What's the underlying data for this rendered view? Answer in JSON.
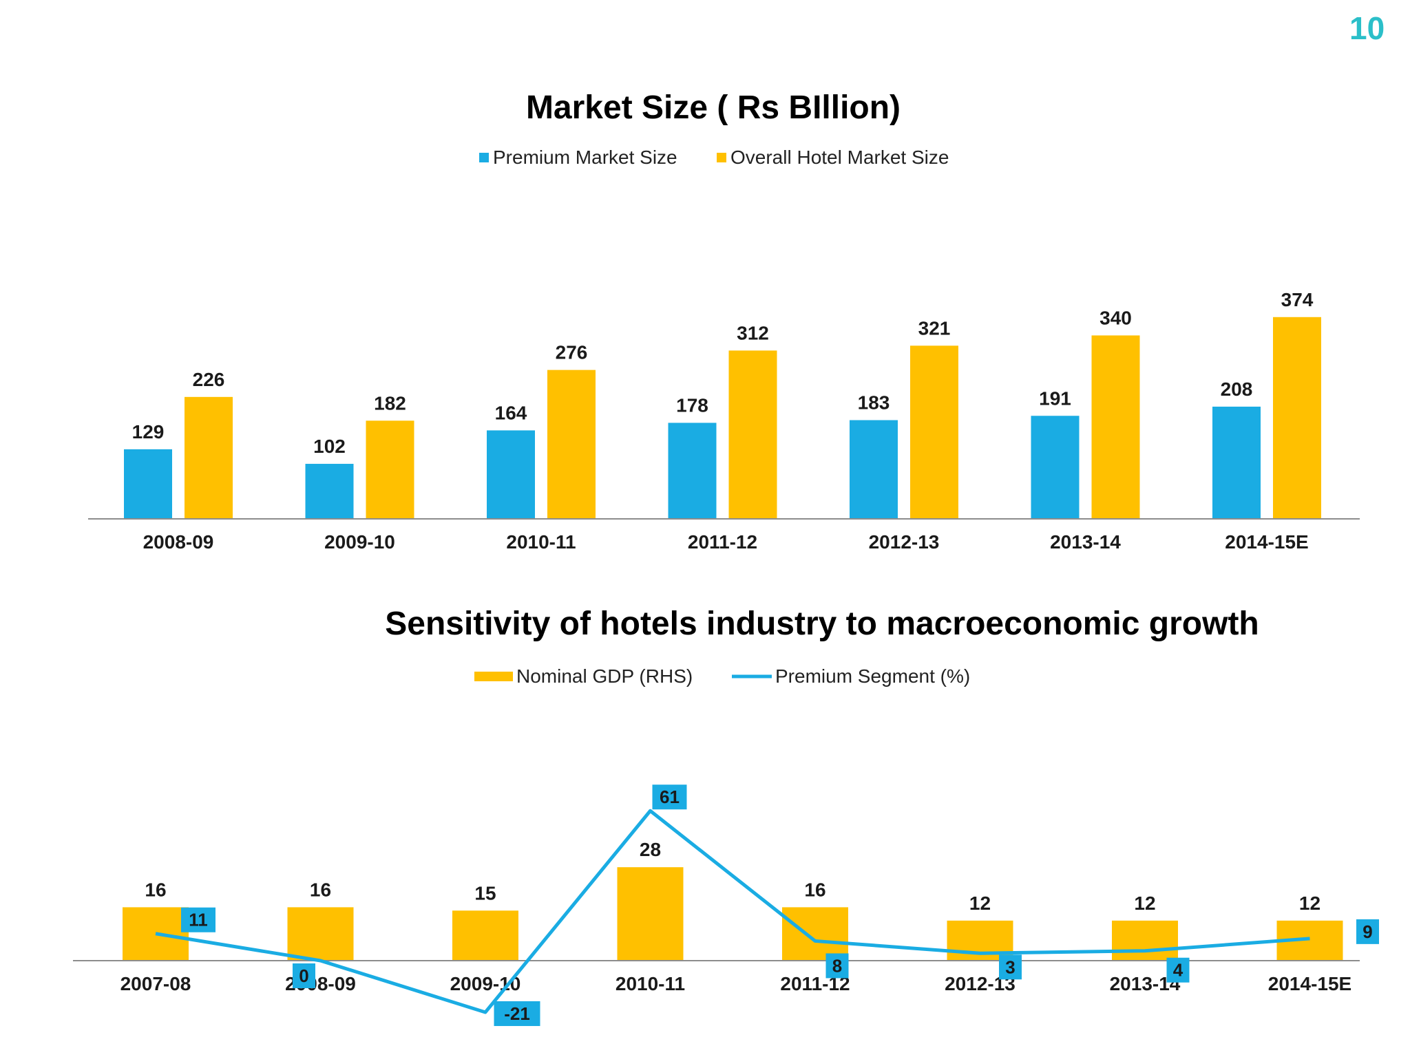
{
  "page_number": "10",
  "colors": {
    "premium": "#1AACE3",
    "overall": "#FFC000",
    "axis": "#8c8c8c",
    "page_number": "#2bbfc9"
  },
  "chart_data": [
    {
      "type": "bar",
      "title": "Market Size ( Rs BIllion)",
      "categories": [
        "2008-09",
        "2009-10",
        "2010-11",
        "2011-12",
        "2012-13",
        "2013-14",
        "2014-15E"
      ],
      "series": [
        {
          "name": "Premium Market Size",
          "values": [
            129,
            102,
            164,
            178,
            183,
            191,
            208
          ]
        },
        {
          "name": "Overall Hotel Market Size",
          "values": [
            226,
            182,
            276,
            312,
            321,
            340,
            374
          ]
        }
      ],
      "ylim": [
        0,
        400
      ],
      "legend": "top",
      "grid": false
    },
    {
      "type": "bar+line",
      "title": "Sensitivity of hotels industry to macroeconomic growth",
      "categories": [
        "2007-08",
        "2008-09",
        "2009-10",
        "2010-11",
        "2011-12",
        "2012-13",
        "2013-14",
        "2014-15E"
      ],
      "series": [
        {
          "name": "Nominal GDP (RHS)",
          "type": "bar",
          "values": [
            16,
            16,
            15,
            28,
            16,
            12,
            12,
            12
          ]
        },
        {
          "name": "Premium Segment (%)",
          "type": "line",
          "values": [
            11,
            0,
            -21,
            61,
            8,
            3,
            4,
            9
          ]
        }
      ],
      "legend": "top",
      "grid": false
    }
  ]
}
